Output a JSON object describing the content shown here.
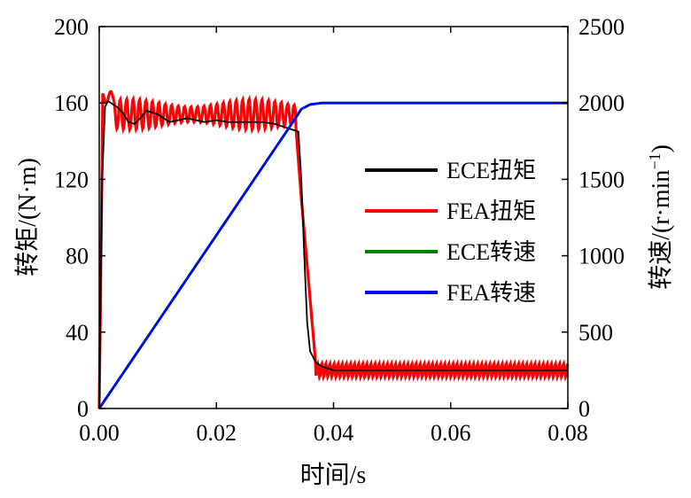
{
  "chart_data": {
    "type": "line",
    "xlabel": "时间/s",
    "ylabel_left": "转矩/(N·m)",
    "ylabel_right_base": "转速/(r·min",
    "ylabel_right_sup": "−1",
    "ylabel_right_close": ")",
    "xlim": [
      0,
      0.08
    ],
    "ylim_left": [
      0,
      200
    ],
    "ylim_right": [
      0,
      2500
    ],
    "xticks": [
      "0.00",
      "0.02",
      "0.04",
      "0.06",
      "0.08"
    ],
    "yticks_left": [
      "0",
      "40",
      "80",
      "120",
      "160",
      "200"
    ],
    "yticks_right": [
      "0",
      "500",
      "1000",
      "1500",
      "2000",
      "2500"
    ],
    "grid": false,
    "legend_position": "right-middle",
    "series": [
      {
        "name": "ECE扭矩",
        "axis": "left",
        "color": "#000000",
        "x": [
          0.0,
          0.0005,
          0.001,
          0.0015,
          0.002,
          0.003,
          0.004,
          0.005,
          0.006,
          0.007,
          0.008,
          0.01,
          0.012,
          0.015,
          0.018,
          0.02,
          0.022,
          0.025,
          0.028,
          0.03,
          0.032,
          0.033,
          0.034,
          0.0345,
          0.035,
          0.0355,
          0.036,
          0.037,
          0.038,
          0.039,
          0.04,
          0.045,
          0.05,
          0.055,
          0.06,
          0.065,
          0.07,
          0.075,
          0.08
        ],
        "y": [
          0,
          120,
          158,
          161,
          160,
          158,
          155,
          150,
          149,
          152,
          156,
          154,
          150,
          152,
          150,
          151,
          150,
          150,
          150,
          149,
          147,
          146,
          145,
          120,
          80,
          45,
          30,
          24,
          22,
          21,
          20,
          20,
          20,
          20,
          20,
          20,
          20,
          20,
          20
        ]
      },
      {
        "name": "FEA扭矩",
        "axis": "left",
        "color": "#ff0000",
        "x": [
          0.0,
          0.08
        ],
        "y": [
          0,
          20
        ],
        "ripple_note": "oscillates ±~8 N·m around 152 (0.002–0.034 s) and around 20 (0.037–0.08 s)"
      },
      {
        "name": "ECE转速",
        "axis": "right",
        "color": "#008000",
        "x": [
          0.0,
          0.0335,
          0.0345,
          0.036,
          0.038,
          0.08
        ],
        "y": [
          0,
          1900,
          1960,
          1990,
          2000,
          2000
        ]
      },
      {
        "name": "FEA转速",
        "axis": "right",
        "color": "#0000ff",
        "x": [
          0.0,
          0.0335,
          0.0345,
          0.036,
          0.038,
          0.08
        ],
        "y": [
          0,
          1900,
          1960,
          1990,
          2000,
          2000
        ]
      }
    ]
  }
}
